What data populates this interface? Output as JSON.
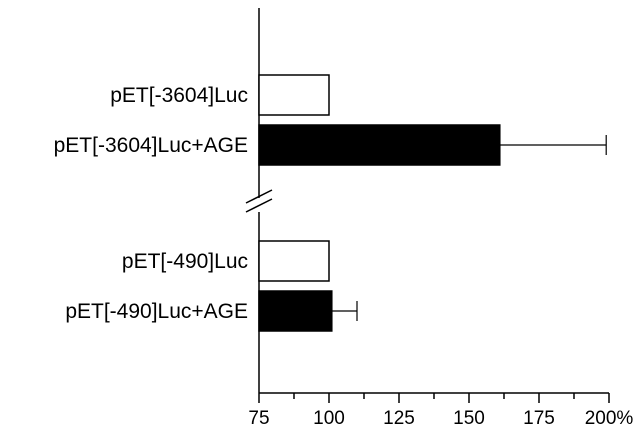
{
  "chart_data": {
    "type": "bar",
    "orientation": "horizontal",
    "title": "",
    "xlabel": "",
    "ylabel": "",
    "xlim": [
      75,
      200
    ],
    "x_ticks": [
      75,
      100,
      125,
      150,
      175,
      200
    ],
    "x_tick_labels": [
      "75",
      "100",
      "125",
      "150",
      "175",
      "200%"
    ],
    "axis_break": "between pET[-3604]Luc+AGE and pET[-490]Luc",
    "grid": false,
    "legend": "none",
    "bars": [
      {
        "category": "pET[-3604]Luc",
        "value": 100,
        "error": null,
        "fill": "#ffffff"
      },
      {
        "category": "pET[-3604]Luc+AGE",
        "value": 161,
        "error": 38,
        "fill": "#000000"
      },
      {
        "category": "pET[-490]Luc",
        "value": 100,
        "error": null,
        "fill": "#ffffff"
      },
      {
        "category": "pET[-490]Luc+AGE",
        "value": 101,
        "error": 9,
        "fill": "#000000"
      }
    ]
  }
}
